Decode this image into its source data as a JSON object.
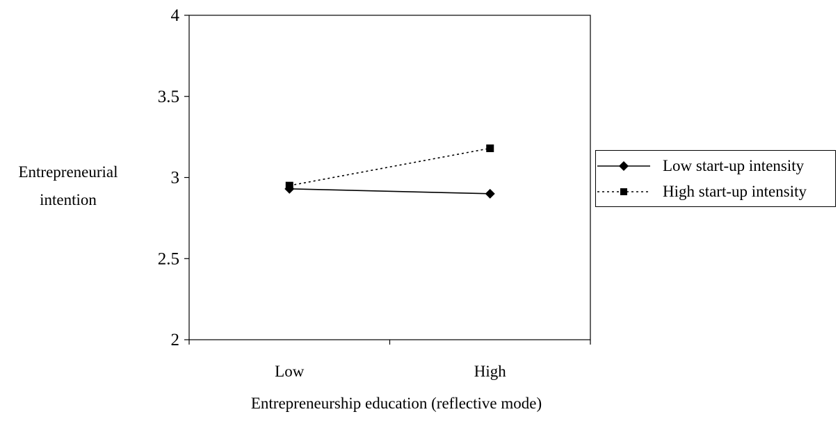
{
  "chart_data": {
    "type": "line",
    "categories": [
      "Low",
      "High"
    ],
    "xlabel": "Entrepreneurship education (reflective mode)",
    "ylabel": [
      "Entrepreneurial",
      "intention"
    ],
    "ylim": [
      2,
      4
    ],
    "yticks": [
      "2",
      "2.5",
      "3",
      "3.5",
      "4"
    ],
    "grid": false,
    "legend_position": "right",
    "series": [
      {
        "name": "Low start-up intensity",
        "values": [
          2.93,
          2.9
        ],
        "line_style": "solid",
        "marker": "diamond",
        "color": "#000000"
      },
      {
        "name": "High start-up intensity",
        "values": [
          2.95,
          3.18
        ],
        "line_style": "dotted",
        "marker": "square",
        "color": "#000000"
      }
    ]
  }
}
